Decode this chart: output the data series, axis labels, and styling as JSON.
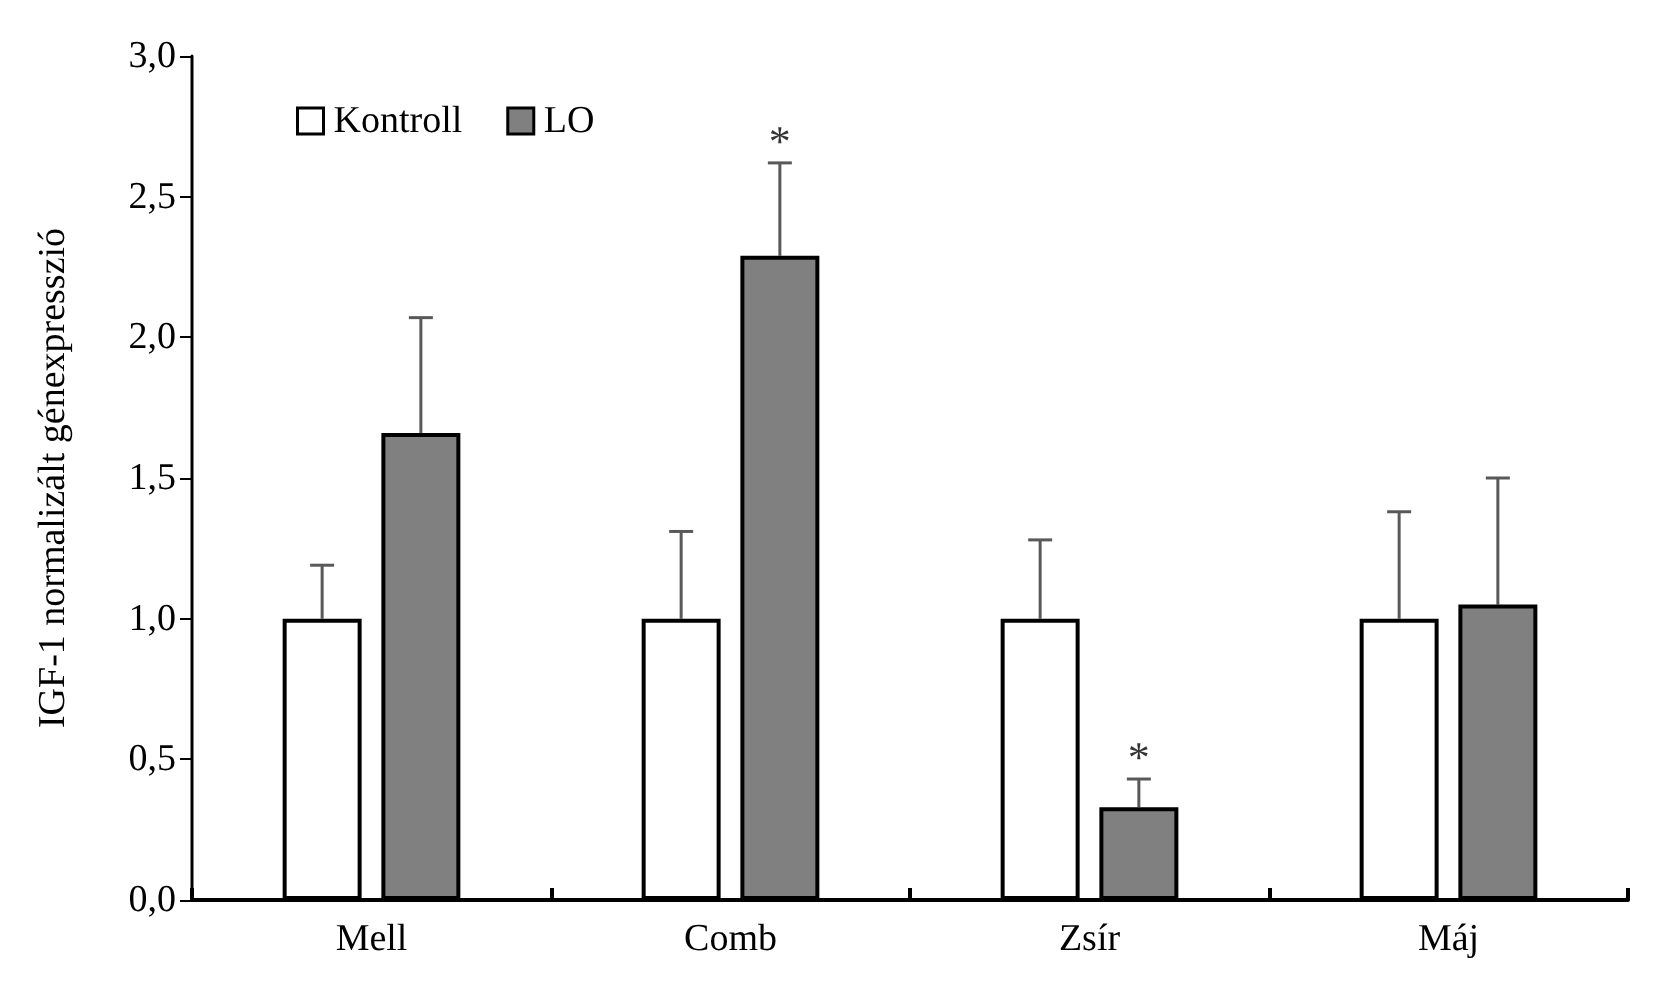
{
  "chart_data": {
    "type": "bar",
    "ylabel": "IGF-1 normalizált génexpresszió",
    "categories": [
      "Mell",
      "Comb",
      "Zsír",
      "Máj"
    ],
    "series": [
      {
        "name": "Kontroll",
        "color": "#ffffff",
        "values": [
          1.0,
          1.0,
          1.0,
          1.0
        ],
        "errors": [
          [
            1.0,
            1.19
          ],
          [
            1.0,
            1.31
          ],
          [
            1.0,
            1.28
          ],
          [
            1.0,
            1.38
          ]
        ]
      },
      {
        "name": "LO",
        "color": "#808080",
        "values": [
          1.66,
          2.29,
          0.33,
          1.05
        ],
        "value_labels": [
          null,
          "*",
          "*",
          null
        ],
        "errors": [
          [
            1.66,
            2.07
          ],
          [
            2.29,
            2.62
          ],
          [
            0.33,
            0.43
          ],
          [
            1.05,
            1.5
          ]
        ]
      }
    ],
    "ylim": [
      0,
      3
    ],
    "yticks": [
      {
        "value": 0,
        "label": "0,0"
      },
      {
        "value": 0.5,
        "label": "0,5"
      },
      {
        "value": 1,
        "label": "1,0"
      },
      {
        "value": 1.5,
        "label": "1,5"
      },
      {
        "value": 2,
        "label": "2,0"
      },
      {
        "value": 2.5,
        "label": "2,5"
      },
      {
        "value": 3,
        "label": "3,0"
      }
    ],
    "legend": "top left",
    "grid": false
  }
}
